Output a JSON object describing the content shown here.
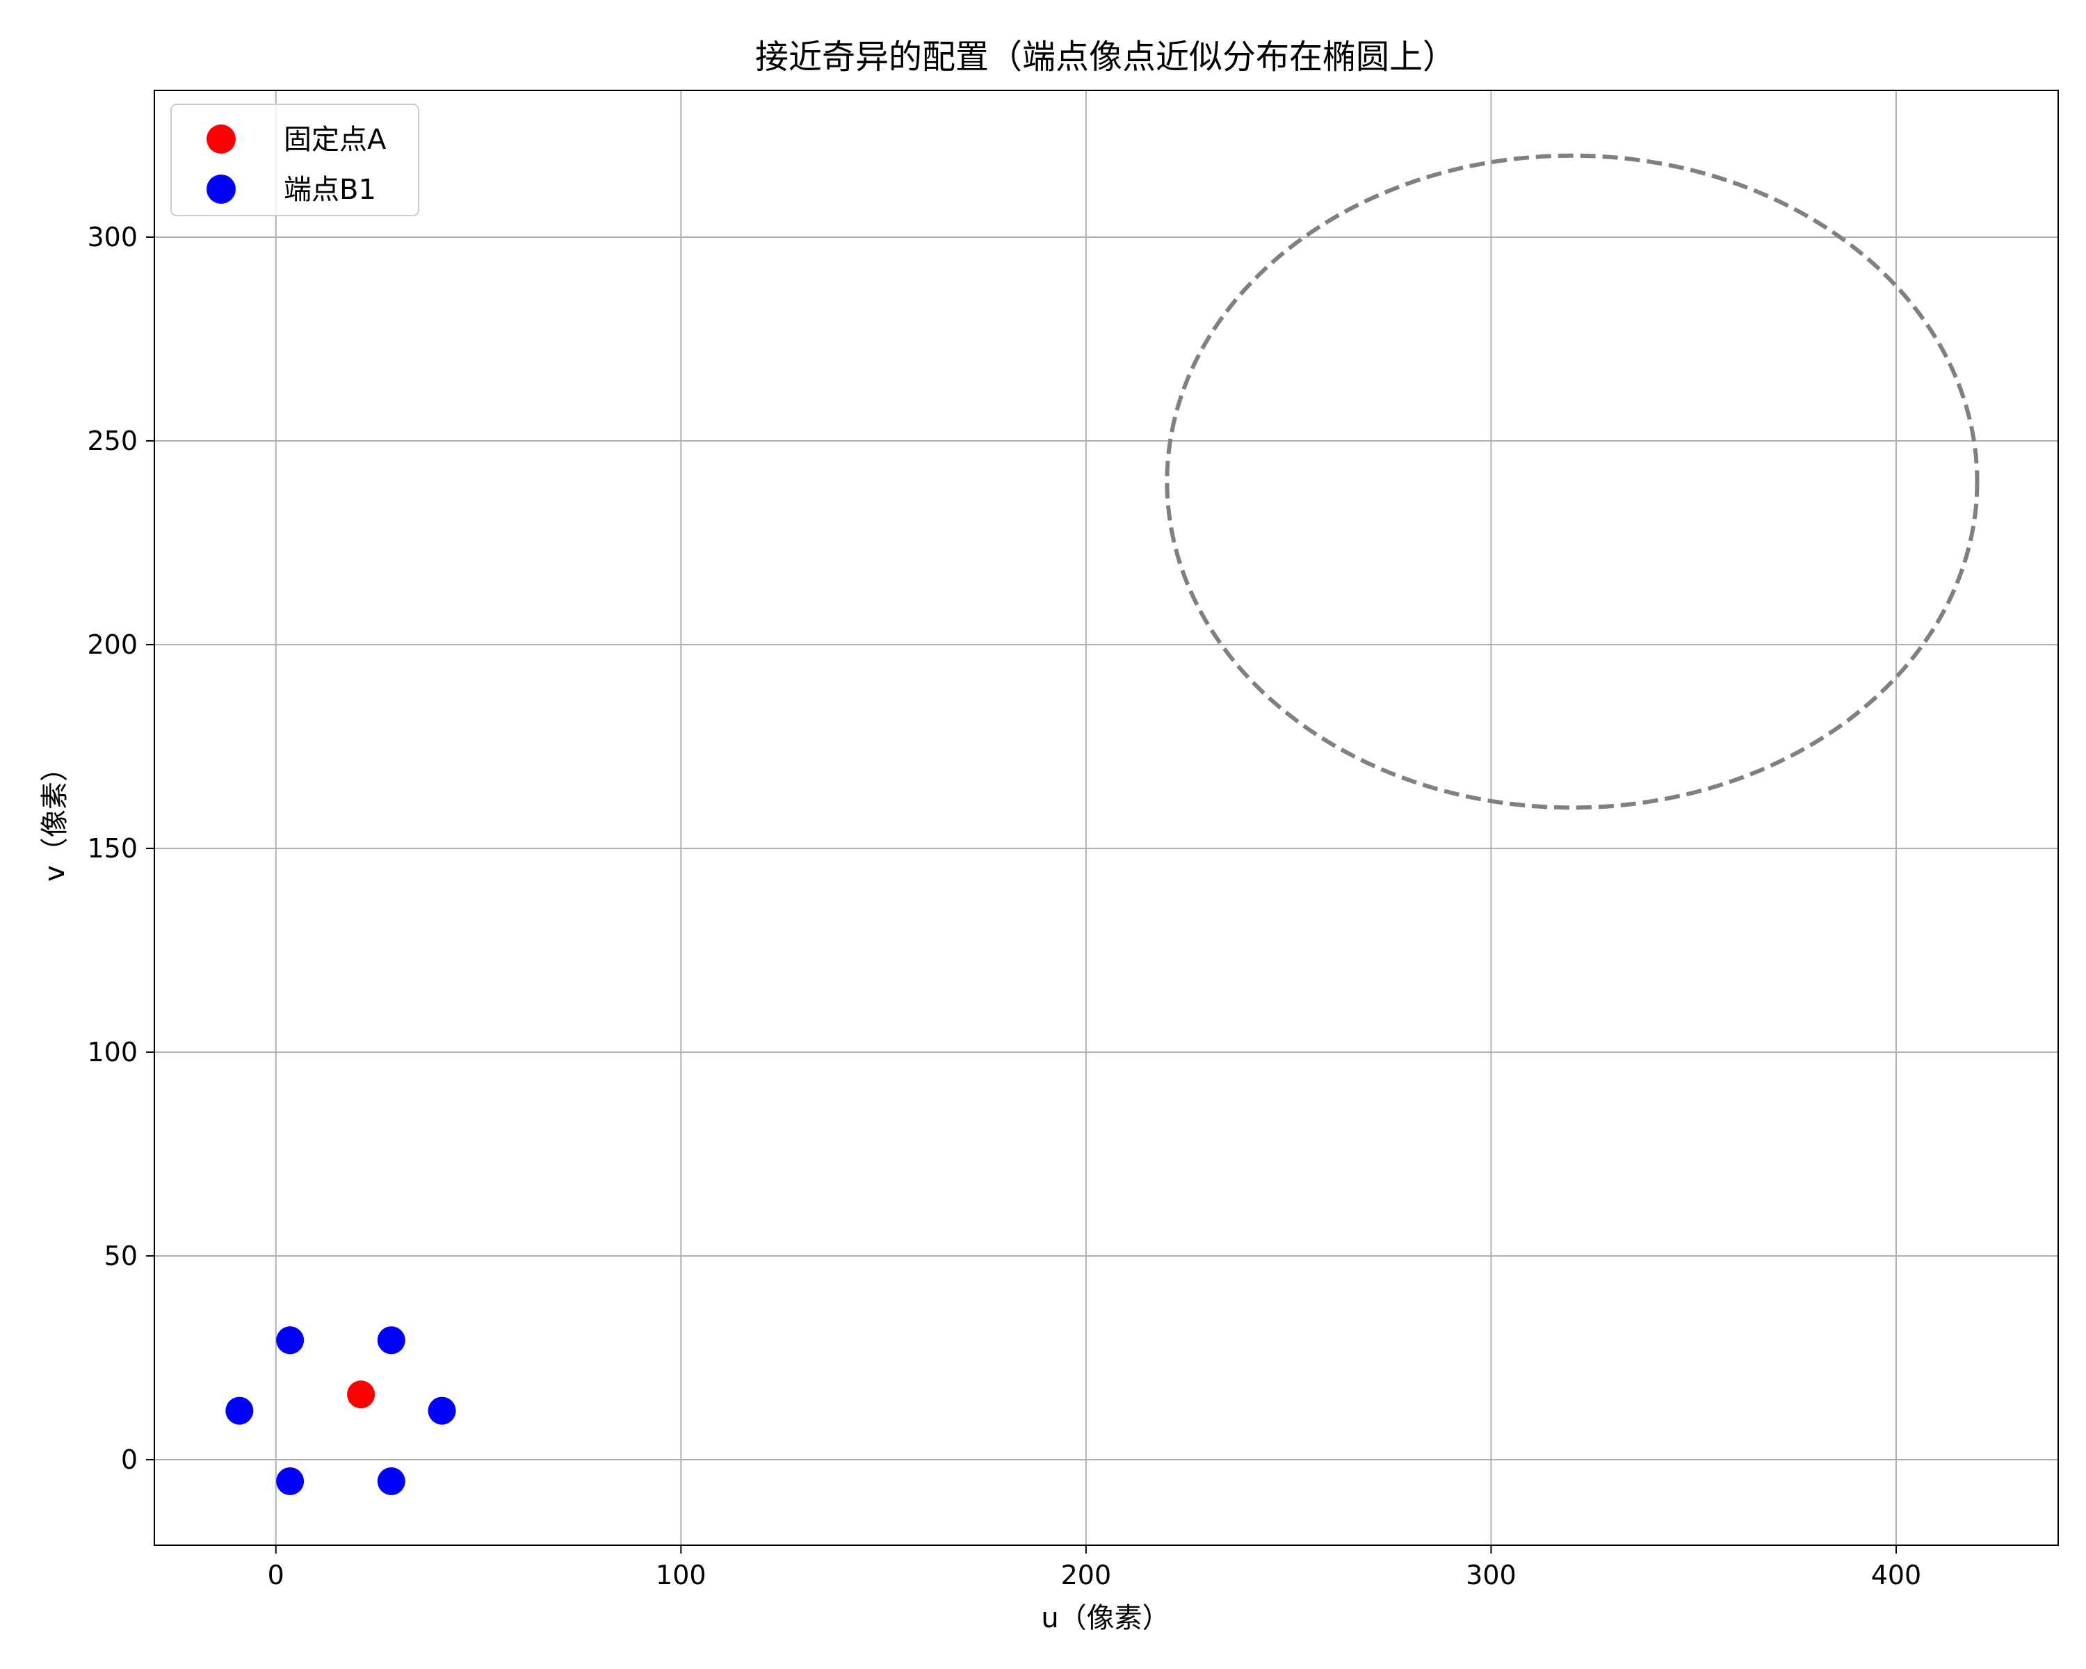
{
  "chart_data": {
    "type": "scatter",
    "title": "接近奇异的配置（端点像点近似分布在椭圆上）",
    "xlabel": "u（像素）",
    "ylabel": "v（像素）",
    "xlim": [
      -30,
      440
    ],
    "ylim": [
      -21,
      336
    ],
    "xticks": [
      0,
      100,
      200,
      300,
      400
    ],
    "yticks": [
      0,
      50,
      100,
      150,
      200,
      250,
      300
    ],
    "grid": true,
    "legend_position": "upper-left",
    "series": [
      {
        "name": "固定点A",
        "color": "#ff0000",
        "points": [
          {
            "x": 21,
            "y": 16
          }
        ]
      },
      {
        "name": "端点B1",
        "color": "#0000ff",
        "points": [
          {
            "x": 3.5,
            "y": 29.3
          },
          {
            "x": 28.5,
            "y": 29.3
          },
          {
            "x": -9,
            "y": 12
          },
          {
            "x": 41,
            "y": 12
          },
          {
            "x": 3.5,
            "y": -5.3
          },
          {
            "x": 28.5,
            "y": -5.3
          }
        ]
      }
    ],
    "ellipse": {
      "center": [
        320,
        240
      ],
      "radius_u": 100,
      "radius_v": 80,
      "color": "#808080",
      "style": "dashed"
    }
  }
}
